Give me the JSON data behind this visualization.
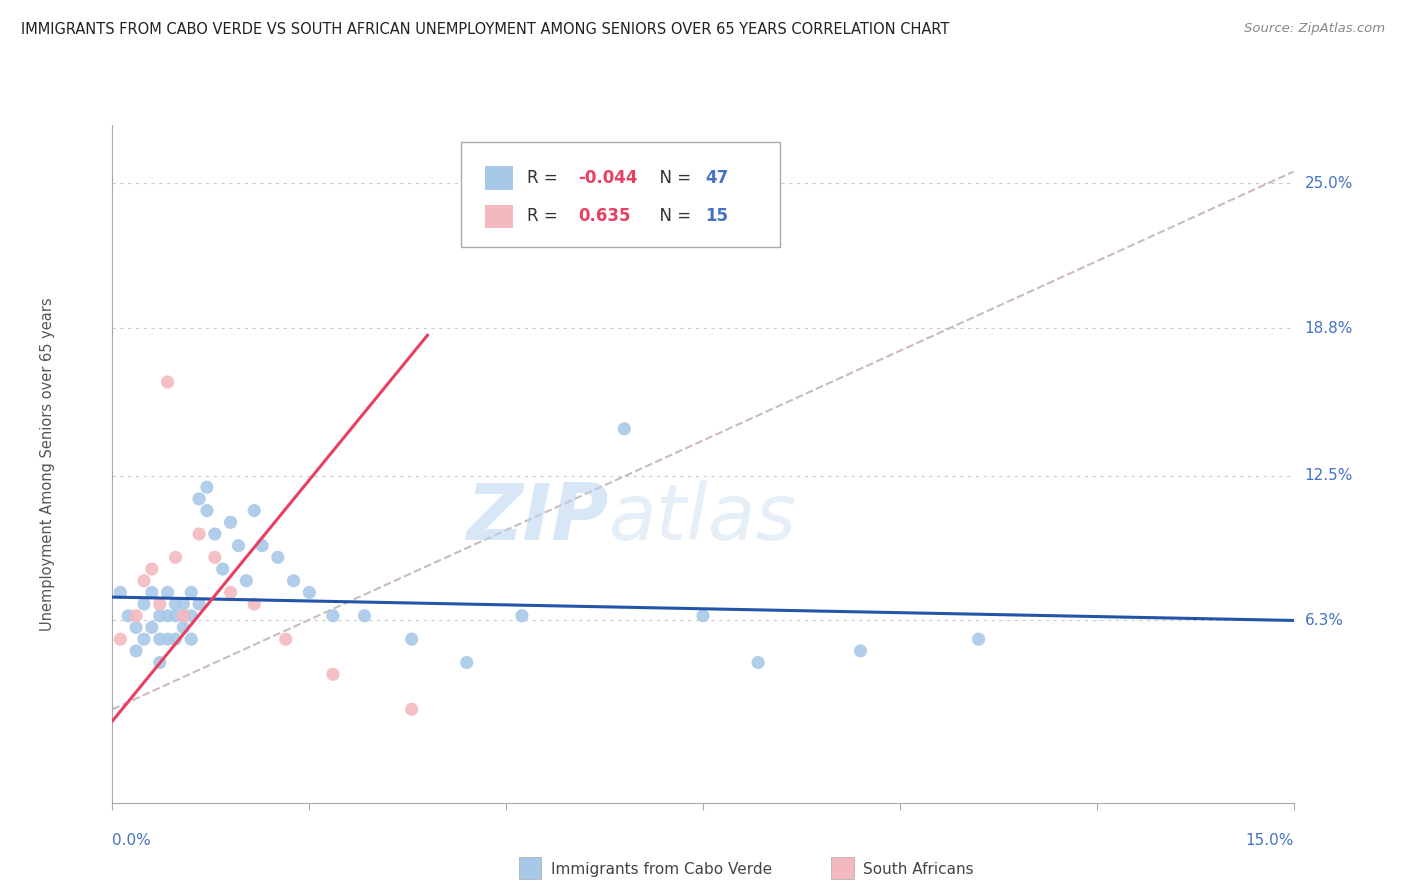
{
  "title": "IMMIGRANTS FROM CABO VERDE VS SOUTH AFRICAN UNEMPLOYMENT AMONG SENIORS OVER 65 YEARS CORRELATION CHART",
  "source": "Source: ZipAtlas.com",
  "ylabel": "Unemployment Among Seniors over 65 years",
  "xlim": [
    0.0,
    0.15
  ],
  "ylim": [
    -0.015,
    0.275
  ],
  "ytick_positions": [
    0.063,
    0.125,
    0.188,
    0.25
  ],
  "ytick_labels": [
    "6.3%",
    "12.5%",
    "18.8%",
    "25.0%"
  ],
  "xtick_positions": [
    0.0,
    0.025,
    0.05,
    0.075,
    0.1,
    0.125,
    0.15
  ],
  "blue_R": -0.044,
  "blue_N": 47,
  "pink_R": 0.635,
  "pink_N": 15,
  "blue_color": "#a8c8e8",
  "blue_line_color": "#2255aa",
  "pink_color": "#f4b8c0",
  "pink_line_color": "#e84060",
  "dash_line_color": "#ccbbbb",
  "blue_scatter_x": [
    0.001,
    0.002,
    0.003,
    0.003,
    0.004,
    0.004,
    0.005,
    0.005,
    0.006,
    0.006,
    0.006,
    0.007,
    0.007,
    0.007,
    0.008,
    0.008,
    0.008,
    0.009,
    0.009,
    0.009,
    0.01,
    0.01,
    0.01,
    0.011,
    0.011,
    0.012,
    0.012,
    0.013,
    0.014,
    0.015,
    0.016,
    0.017,
    0.018,
    0.019,
    0.021,
    0.023,
    0.025,
    0.028,
    0.032,
    0.038,
    0.045,
    0.052,
    0.065,
    0.075,
    0.082,
    0.095,
    0.11
  ],
  "blue_scatter_y": [
    0.075,
    0.065,
    0.06,
    0.05,
    0.07,
    0.055,
    0.075,
    0.06,
    0.065,
    0.055,
    0.045,
    0.075,
    0.065,
    0.055,
    0.07,
    0.065,
    0.055,
    0.07,
    0.065,
    0.06,
    0.075,
    0.065,
    0.055,
    0.07,
    0.115,
    0.11,
    0.12,
    0.1,
    0.085,
    0.105,
    0.095,
    0.08,
    0.11,
    0.095,
    0.09,
    0.08,
    0.075,
    0.065,
    0.065,
    0.055,
    0.045,
    0.065,
    0.145,
    0.065,
    0.045,
    0.05,
    0.055
  ],
  "pink_scatter_x": [
    0.001,
    0.003,
    0.004,
    0.005,
    0.006,
    0.007,
    0.008,
    0.009,
    0.011,
    0.013,
    0.015,
    0.018,
    0.022,
    0.028,
    0.038
  ],
  "pink_scatter_y": [
    0.055,
    0.065,
    0.08,
    0.085,
    0.07,
    0.165,
    0.09,
    0.065,
    0.1,
    0.09,
    0.075,
    0.07,
    0.055,
    0.04,
    0.025
  ],
  "blue_line_x": [
    0.0,
    0.15
  ],
  "blue_line_y": [
    0.073,
    0.063
  ],
  "pink_line_x": [
    0.0,
    0.04
  ],
  "pink_line_y": [
    0.02,
    0.185
  ],
  "dash_line_x": [
    0.0,
    0.15
  ],
  "dash_line_y": [
    0.025,
    0.255
  ]
}
